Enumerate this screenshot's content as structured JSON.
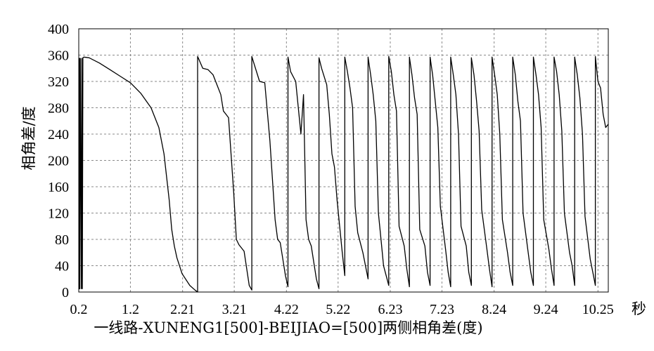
{
  "chart_data": {
    "type": "line",
    "title": "",
    "xlabel": "一线路-XUNENG1[500]-BEIJIAO=[500]两侧相角差(度)",
    "x_unit_label": "秒",
    "ylabel": "相角差/度",
    "xlim": [
      0.2,
      10.45
    ],
    "ylim": [
      0,
      400
    ],
    "x_ticks": [
      0.2,
      1.2,
      2.21,
      3.21,
      4.22,
      5.22,
      6.23,
      7.23,
      8.24,
      9.24,
      10.25
    ],
    "x_tick_labels": [
      "0.2",
      "1.2",
      "2.21",
      "3.21",
      "4.22",
      "5.22",
      "6.23",
      "7.23",
      "8.24",
      "9.24",
      "10.25"
    ],
    "y_ticks": [
      0,
      40,
      80,
      120,
      160,
      200,
      240,
      280,
      320,
      360,
      400
    ],
    "grid": true,
    "series": [
      {
        "x": [
          0.2,
          0.21,
          0.215,
          0.22,
          0.23,
          0.25,
          0.26,
          0.27,
          0.28,
          0.3,
          0.4,
          0.6,
          0.8,
          1.0,
          1.2,
          1.4,
          1.6,
          1.75,
          1.85,
          1.95,
          2.0,
          2.05,
          2.1,
          2.2,
          2.35,
          2.45,
          2.5,
          2.5,
          2.6,
          2.7,
          2.8,
          2.95,
          3.0,
          3.05,
          3.1,
          3.2,
          3.25,
          3.3,
          3.4,
          3.5,
          3.55,
          3.55,
          3.6,
          3.7,
          3.8,
          3.9,
          4.0,
          4.05,
          4.1,
          4.2,
          4.25,
          4.25,
          4.3,
          4.4,
          4.5,
          4.55,
          4.6,
          4.65,
          4.7,
          4.8,
          4.85,
          4.85,
          4.9,
          5.0,
          5.05,
          5.1,
          5.15,
          5.2,
          5.3,
          5.35,
          5.35,
          5.4,
          5.45,
          5.5,
          5.55,
          5.6,
          5.7,
          5.8,
          5.8,
          5.85,
          5.9,
          5.95,
          6.0,
          6.05,
          6.1,
          6.2,
          6.2,
          6.25,
          6.3,
          6.35,
          6.4,
          6.5,
          6.55,
          6.6,
          6.6,
          6.65,
          6.7,
          6.75,
          6.8,
          6.9,
          6.95,
          7.0,
          7.0,
          7.05,
          7.1,
          7.15,
          7.2,
          7.3,
          7.35,
          7.4,
          7.4,
          7.45,
          7.5,
          7.55,
          7.6,
          7.7,
          7.75,
          7.8,
          7.8,
          7.85,
          7.9,
          7.95,
          8.0,
          8.1,
          8.15,
          8.2,
          8.2,
          8.25,
          8.3,
          8.35,
          8.4,
          8.5,
          8.55,
          8.6,
          8.6,
          8.65,
          8.7,
          8.75,
          8.8,
          8.9,
          8.95,
          9.0,
          9.0,
          9.05,
          9.1,
          9.15,
          9.2,
          9.3,
          9.35,
          9.4,
          9.4,
          9.45,
          9.5,
          9.55,
          9.6,
          9.7,
          9.75,
          9.8,
          9.8,
          9.85,
          9.9,
          9.95,
          10.0,
          10.1,
          10.15,
          10.2,
          10.2,
          10.25,
          10.3,
          10.35,
          10.4,
          10.45
        ],
        "y": [
          5,
          5,
          355,
          5,
          355,
          5,
          355,
          5,
          356,
          357,
          356,
          348,
          338,
          328,
          318,
          302,
          280,
          250,
          210,
          140,
          95,
          70,
          52,
          28,
          10,
          3,
          0,
          358,
          340,
          338,
          330,
          300,
          275,
          270,
          265,
          150,
          80,
          72,
          62,
          10,
          3,
          358,
          345,
          320,
          318,
          230,
          110,
          80,
          75,
          25,
          8,
          357,
          335,
          320,
          240,
          300,
          110,
          80,
          70,
          20,
          5,
          356,
          340,
          315,
          270,
          210,
          190,
          140,
          60,
          25,
          357,
          335,
          310,
          280,
          130,
          90,
          60,
          20,
          357,
          330,
          300,
          260,
          120,
          80,
          40,
          10,
          358,
          335,
          300,
          275,
          100,
          70,
          35,
          8,
          357,
          330,
          295,
          270,
          95,
          70,
          30,
          10,
          357,
          330,
          290,
          250,
          130,
          65,
          30,
          8,
          357,
          330,
          300,
          240,
          100,
          70,
          30,
          10,
          356,
          330,
          290,
          245,
          125,
          65,
          35,
          8,
          357,
          330,
          300,
          240,
          110,
          60,
          30,
          10,
          357,
          330,
          290,
          260,
          120,
          60,
          30,
          10,
          357,
          330,
          300,
          250,
          110,
          65,
          35,
          10,
          357,
          335,
          300,
          245,
          120,
          60,
          40,
          10,
          357,
          330,
          295,
          240,
          115,
          50,
          30,
          10,
          358,
          320,
          310,
          270,
          250,
          255
        ]
      }
    ]
  }
}
